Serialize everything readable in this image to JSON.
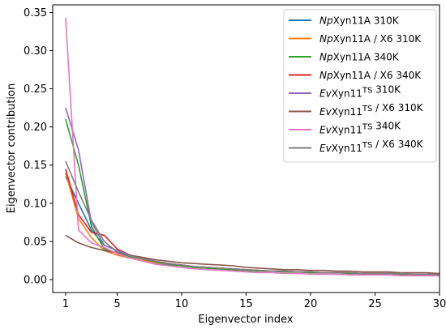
{
  "chart_data": {
    "type": "line",
    "xlabel": "Eigenvector index",
    "ylabel": "Eigenvector contribution",
    "xlim": [
      0,
      30
    ],
    "ylim": [
      -0.017,
      0.36
    ],
    "xticks": [
      1,
      5,
      10,
      15,
      20,
      25,
      30
    ],
    "yticks": [
      0.0,
      0.05,
      0.1,
      0.15,
      0.2,
      0.25,
      0.3,
      0.35
    ],
    "ytick_labels": [
      "0.00",
      "0.05",
      "0.10",
      "0.15",
      "0.20",
      "0.25",
      "0.30",
      "0.35"
    ],
    "legend_position": "top-right",
    "x": [
      1,
      2,
      3,
      4,
      5,
      6,
      7,
      8,
      9,
      10,
      11,
      12,
      13,
      14,
      15,
      16,
      17,
      18,
      19,
      20,
      21,
      22,
      23,
      24,
      25,
      26,
      27,
      28,
      29,
      30
    ],
    "series": [
      {
        "name": "NpXyn11A 310K",
        "name_parts": [
          {
            "t": "Np",
            "i": true
          },
          {
            "t": "Xyn11A 310K",
            "i": false
          }
        ],
        "color": "#1f77b4",
        "values": [
          0.135,
          0.1,
          0.065,
          0.045,
          0.038,
          0.03,
          0.027,
          0.022,
          0.019,
          0.018,
          0.016,
          0.015,
          0.014,
          0.013,
          0.012,
          0.011,
          0.011,
          0.01,
          0.01,
          0.009,
          0.009,
          0.009,
          0.008,
          0.008,
          0.008,
          0.008,
          0.007,
          0.007,
          0.007,
          0.007
        ]
      },
      {
        "name": "NpXyn11A / X6 310K",
        "name_parts": [
          {
            "t": "Np",
            "i": true
          },
          {
            "t": "Xyn11A / X6 310K",
            "i": false
          }
        ],
        "color": "#ff7f0e",
        "values": [
          0.14,
          0.08,
          0.055,
          0.038,
          0.032,
          0.028,
          0.025,
          0.022,
          0.02,
          0.018,
          0.016,
          0.015,
          0.014,
          0.013,
          0.012,
          0.011,
          0.011,
          0.01,
          0.01,
          0.009,
          0.009,
          0.009,
          0.008,
          0.008,
          0.008,
          0.008,
          0.007,
          0.007,
          0.007,
          0.007
        ]
      },
      {
        "name": "NpXyn11A 340K",
        "name_parts": [
          {
            "t": "Np",
            "i": true
          },
          {
            "t": "Xyn11A 340K",
            "i": false
          }
        ],
        "color": "#2ca02c",
        "values": [
          0.21,
          0.15,
          0.07,
          0.04,
          0.035,
          0.03,
          0.027,
          0.023,
          0.02,
          0.018,
          0.016,
          0.015,
          0.014,
          0.013,
          0.012,
          0.011,
          0.011,
          0.01,
          0.01,
          0.009,
          0.009,
          0.009,
          0.008,
          0.008,
          0.008,
          0.008,
          0.007,
          0.007,
          0.007,
          0.007
        ]
      },
      {
        "name": "NpXyn11A / X6 340K",
        "name_parts": [
          {
            "t": "Np",
            "i": true
          },
          {
            "t": "Xyn11A / X6 340K",
            "i": false
          }
        ],
        "color": "#d62728",
        "values": [
          0.145,
          0.085,
          0.062,
          0.058,
          0.04,
          0.032,
          0.028,
          0.024,
          0.021,
          0.019,
          0.017,
          0.016,
          0.015,
          0.014,
          0.013,
          0.012,
          0.011,
          0.011,
          0.01,
          0.01,
          0.009,
          0.009,
          0.009,
          0.008,
          0.008,
          0.008,
          0.008,
          0.007,
          0.007,
          0.007
        ]
      },
      {
        "name": "EvXyn11TS 310K",
        "name_parts": [
          {
            "t": "Ev",
            "i": true
          },
          {
            "t": "Xyn11",
            "i": false
          },
          {
            "t": "TS",
            "i": false,
            "sup": true
          },
          {
            "t": " 310K",
            "i": false
          }
        ],
        "color": "#9467bd",
        "values": [
          0.225,
          0.17,
          0.075,
          0.045,
          0.038,
          0.032,
          0.028,
          0.024,
          0.021,
          0.019,
          0.017,
          0.016,
          0.015,
          0.014,
          0.013,
          0.012,
          0.011,
          0.011,
          0.01,
          0.01,
          0.009,
          0.009,
          0.009,
          0.008,
          0.008,
          0.008,
          0.008,
          0.007,
          0.007,
          0.007
        ]
      },
      {
        "name": "EvXyn11TS / X6 310K",
        "name_parts": [
          {
            "t": "Ev",
            "i": true
          },
          {
            "t": "Xyn11",
            "i": false
          },
          {
            "t": "TS",
            "i": false,
            "sup": true
          },
          {
            "t": " / X6 310K",
            "i": false
          }
        ],
        "color": "#8c564b",
        "values": [
          0.058,
          0.048,
          0.042,
          0.038,
          0.035,
          0.032,
          0.029,
          0.026,
          0.024,
          0.022,
          0.021,
          0.02,
          0.019,
          0.018,
          0.016,
          0.015,
          0.014,
          0.013,
          0.013,
          0.012,
          0.012,
          0.011,
          0.011,
          0.01,
          0.01,
          0.01,
          0.009,
          0.009,
          0.009,
          0.008
        ]
      },
      {
        "name": "EvXyn11TS 340K",
        "name_parts": [
          {
            "t": "Ev",
            "i": true
          },
          {
            "t": "Xyn11",
            "i": false
          },
          {
            "t": "TS",
            "i": false,
            "sup": true
          },
          {
            "t": " 340K",
            "i": false
          }
        ],
        "color": "#e377c2",
        "values": [
          0.343,
          0.065,
          0.048,
          0.042,
          0.034,
          0.028,
          0.024,
          0.02,
          0.018,
          0.016,
          0.014,
          0.013,
          0.012,
          0.011,
          0.01,
          0.009,
          0.009,
          0.008,
          0.008,
          0.007,
          0.007,
          0.007,
          0.006,
          0.006,
          0.006,
          0.006,
          0.005,
          0.005,
          0.005,
          0.005
        ]
      },
      {
        "name": "EvXyn11TS / X6 340K",
        "name_parts": [
          {
            "t": "Ev",
            "i": true
          },
          {
            "t": "Xyn11",
            "i": false
          },
          {
            "t": "TS",
            "i": false,
            "sup": true
          },
          {
            "t": " / X6 340K",
            "i": false
          }
        ],
        "color": "#7f7f7f",
        "values": [
          0.155,
          0.115,
          0.078,
          0.05,
          0.036,
          0.031,
          0.027,
          0.024,
          0.021,
          0.019,
          0.017,
          0.016,
          0.015,
          0.014,
          0.013,
          0.012,
          0.011,
          0.011,
          0.01,
          0.01,
          0.009,
          0.009,
          0.009,
          0.008,
          0.008,
          0.008,
          0.008,
          0.007,
          0.007,
          0.007
        ]
      }
    ]
  }
}
